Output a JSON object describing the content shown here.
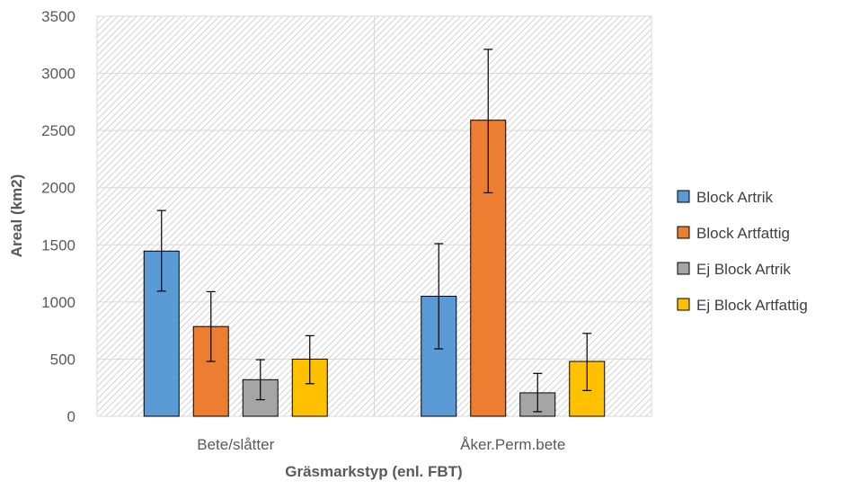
{
  "chart_data": {
    "type": "bar",
    "title": "",
    "xlabel": "Gräsmarkstyp (enl. FBT)",
    "ylabel": "Areal (km2)",
    "ylim": [
      0,
      3500
    ],
    "yticks": [
      0,
      500,
      1000,
      1500,
      2000,
      2500,
      3000,
      3500
    ],
    "categories": [
      "Bete/slåtter",
      "Åker.Perm.bete"
    ],
    "grid": true,
    "plot_background": "diagonal-hatch",
    "legend_position": "right",
    "series": [
      {
        "name": "Block Artrik",
        "color": "#5B9BD5",
        "values": [
          1445,
          1050
        ],
        "error_low": [
          1095,
          590
        ],
        "error_high": [
          1800,
          1510
        ]
      },
      {
        "name": "Block Artfattig",
        "color": "#ED7D31",
        "values": [
          785,
          2590
        ],
        "error_low": [
          480,
          1955
        ],
        "error_high": [
          1090,
          3210
        ]
      },
      {
        "name": "Ej Block Artrik",
        "color": "#A5A5A5",
        "values": [
          320,
          205
        ],
        "error_low": [
          145,
          40
        ],
        "error_high": [
          495,
          375
        ]
      },
      {
        "name": "Ej Block Artfattig",
        "color": "#FFC000",
        "values": [
          500,
          480
        ],
        "error_low": [
          285,
          225
        ],
        "error_high": [
          705,
          725
        ]
      }
    ]
  }
}
